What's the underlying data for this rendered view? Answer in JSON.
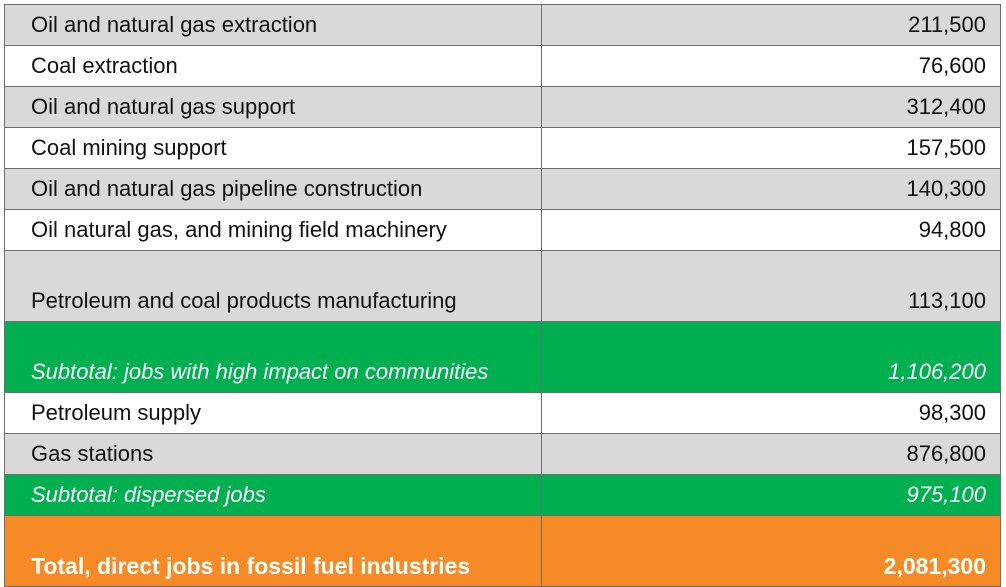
{
  "table": {
    "rows": [
      {
        "label": "Oil and natural gas extraction",
        "value": "211,500",
        "style": "gray"
      },
      {
        "label": "Coal extraction",
        "value": "76,600",
        "style": "white"
      },
      {
        "label": "Oil and natural gas support",
        "value": "312,400",
        "style": "gray"
      },
      {
        "label": "Coal mining support",
        "value": "157,500",
        "style": "white"
      },
      {
        "label": "Oil and natural gas pipeline construction",
        "value": "140,300",
        "style": "gray"
      },
      {
        "label": "Oil natural gas, and mining field machinery",
        "value": "94,800",
        "style": "white"
      },
      {
        "label": "Petroleum and coal products manufacturing",
        "value": "113,100",
        "style": "gray"
      },
      {
        "label": "Subtotal: jobs with high impact on communities",
        "value": "1,106,200",
        "style": "subtotal"
      },
      {
        "label": "Petroleum supply",
        "value": "98,300",
        "style": "white"
      },
      {
        "label": "Gas stations",
        "value": "876,800",
        "style": "gray"
      },
      {
        "label": "Subtotal: dispersed jobs",
        "value": "975,100",
        "style": "subtotal"
      },
      {
        "label": "Total, direct jobs in fossil fuel industries",
        "value": "2,081,300",
        "style": "total"
      }
    ]
  },
  "colors": {
    "gray_row": "#d9d9d9",
    "white_row": "#ffffff",
    "subtotal_green": "#00b050",
    "total_orange": "#f58a27",
    "border": "#6e6e6e"
  }
}
